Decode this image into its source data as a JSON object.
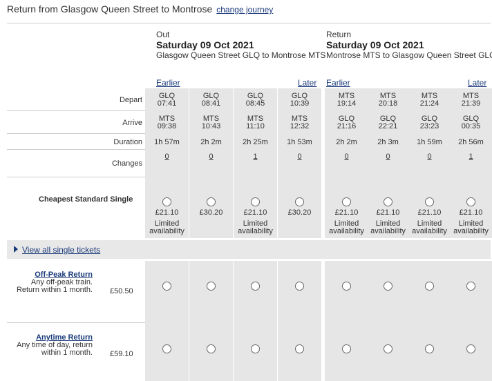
{
  "header": {
    "title": "Return from Glasgow Queen Street to Montrose",
    "change_link": "change journey"
  },
  "outbound": {
    "label": "Out",
    "date": "Saturday 09 Oct 2021",
    "route": "Glasgow Queen Street GLQ to Montrose MTS",
    "earlier": "Earlier",
    "later": "Later"
  },
  "return": {
    "label": "Return",
    "date": "Saturday 09 Oct 2021",
    "route": "Montrose MTS to Glasgow Queen Street GLQ",
    "earlier": "Earlier",
    "later": "Later"
  },
  "row_labels": {
    "depart": "Depart",
    "arrive": "Arrive",
    "duration": "Duration",
    "changes": "Changes",
    "cheapest": "Cheapest Standard Single"
  },
  "journeys": [
    {
      "dep_st": "GLQ",
      "dep_t": "07:41",
      "arr_st": "MTS",
      "arr_t": "09:38",
      "dur": "1h 57m",
      "chg": "0",
      "price": "£21.10",
      "avail1": "Limited",
      "avail2": "availability"
    },
    {
      "dep_st": "GLQ",
      "dep_t": "08:41",
      "arr_st": "MTS",
      "arr_t": "10:43",
      "dur": "2h 2m",
      "chg": "0",
      "price": "£30.20",
      "avail1": "",
      "avail2": ""
    },
    {
      "dep_st": "GLQ",
      "dep_t": "08:45",
      "arr_st": "MTS",
      "arr_t": "11:10",
      "dur": "2h 25m",
      "chg": "1",
      "price": "£21.10",
      "avail1": "Limited",
      "avail2": "availability"
    },
    {
      "dep_st": "GLQ",
      "dep_t": "10:39",
      "arr_st": "MTS",
      "arr_t": "12:32",
      "dur": "1h 53m",
      "chg": "0",
      "price": "£30.20",
      "avail1": "",
      "avail2": ""
    },
    {
      "dep_st": "MTS",
      "dep_t": "19:14",
      "arr_st": "GLQ",
      "arr_t": "21:16",
      "dur": "2h 2m",
      "chg": "0",
      "price": "£21.10",
      "avail1": "Limited",
      "avail2": "availability"
    },
    {
      "dep_st": "MTS",
      "dep_t": "20:18",
      "arr_st": "GLQ",
      "arr_t": "22:21",
      "dur": "2h 3m",
      "chg": "0",
      "price": "£21.10",
      "avail1": "Limited",
      "avail2": "availability"
    },
    {
      "dep_st": "MTS",
      "dep_t": "21:24",
      "arr_st": "GLQ",
      "arr_t": "23:23",
      "dur": "1h 59m",
      "chg": "0",
      "price": "£21.10",
      "avail1": "Limited",
      "avail2": "availability"
    },
    {
      "dep_st": "MTS",
      "dep_t": "21:39",
      "arr_st": "GLQ",
      "arr_t": "00:35",
      "dur": "2h 56m",
      "chg": "1",
      "price": "£21.10",
      "avail1": "Limited",
      "avail2": "availability"
    }
  ],
  "view_all": "View all single tickets",
  "tickets": [
    {
      "name": "Off-Peak Return",
      "desc1": "Any off-peak train.",
      "desc2": "Return within 1 month.",
      "price": "£50.50"
    },
    {
      "name": "Anytime Return",
      "desc1": "Any time of day, return",
      "desc2": "within 1 month.",
      "price": "£59.10"
    }
  ]
}
